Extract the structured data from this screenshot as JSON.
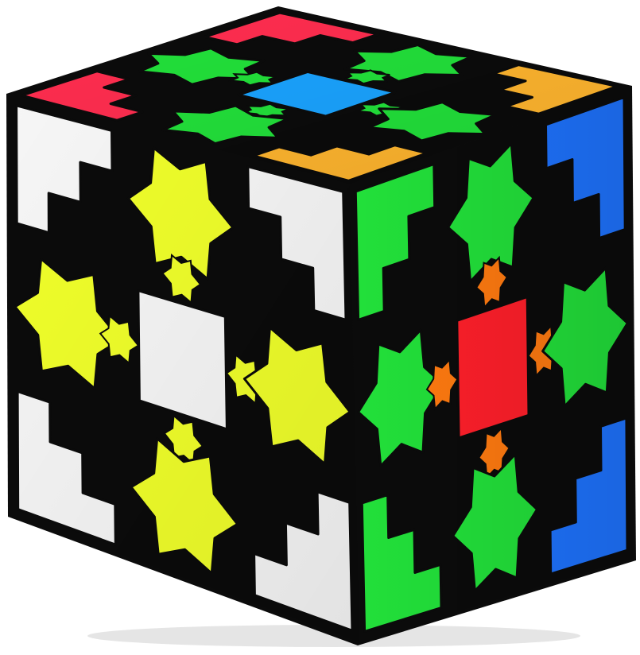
{
  "image": {
    "subject": "gear-cube-puzzle",
    "background_color": "#ffffff",
    "body_color": "#0b0b0b"
  },
  "faces": {
    "top": {
      "primary": "#ff2d4f",
      "secondary": "#ffb52e",
      "center": "#1aa3ff",
      "gear": "#22e03a"
    },
    "left": {
      "primary": "#f6f6f6",
      "gear": "#f0ff2a",
      "center": "#f6f6f6"
    },
    "right": {
      "primary": "#22e03a",
      "secondary": "#1e73ff",
      "center": "#ff1f2a",
      "gear": "#ff7a10"
    }
  }
}
